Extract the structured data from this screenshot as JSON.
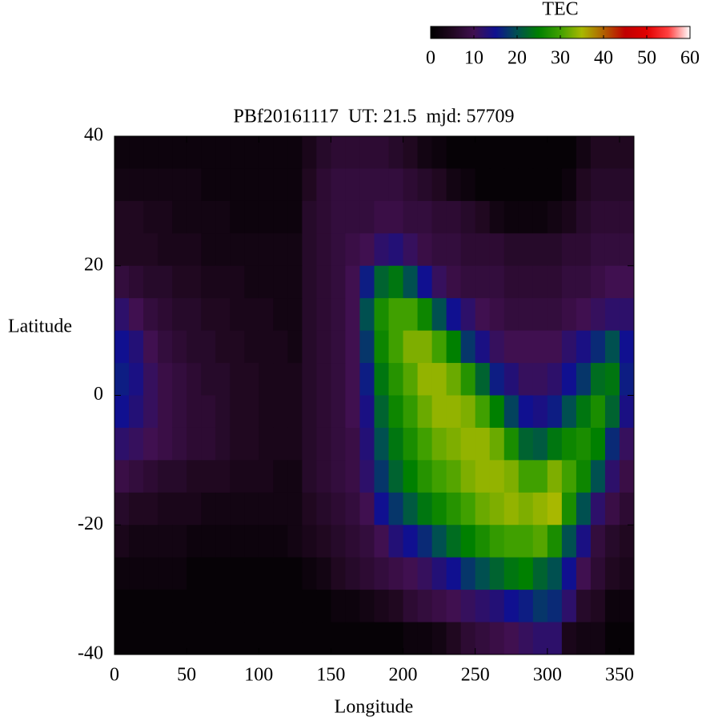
{
  "chart_data": {
    "type": "heatmap",
    "title": "PBf20161117  UT: 21.5  mjd: 57709",
    "x_label": "Longitude",
    "y_label": "Latitude",
    "xlim": [
      0,
      360
    ],
    "xticks": [
      0,
      50,
      100,
      150,
      200,
      250,
      300,
      350
    ],
    "ylim": [
      -40,
      40
    ],
    "yticks": [
      -40,
      -20,
      0,
      20,
      40
    ],
    "x": [
      5,
      15,
      25,
      35,
      45,
      55,
      65,
      75,
      85,
      95,
      105,
      115,
      125,
      135,
      145,
      155,
      165,
      175,
      185,
      195,
      205,
      215,
      225,
      235,
      245,
      255,
      265,
      275,
      285,
      295,
      305,
      315,
      325,
      335,
      345,
      355
    ],
    "y": [
      37.5,
      32.5,
      27.5,
      22.5,
      17.5,
      12.5,
      7.5,
      2.5,
      -2.5,
      -7.5,
      -12.5,
      -17.5,
      -22.5,
      -27.5,
      -32.5,
      -37.5
    ],
    "z": [
      [
        2,
        2,
        2,
        2,
        2,
        2,
        2,
        2,
        2,
        2,
        2,
        2,
        2,
        4,
        6,
        7,
        7,
        7,
        7,
        6,
        5,
        3,
        2,
        1,
        1,
        1,
        1,
        1,
        1,
        1,
        1,
        1,
        3,
        5,
        5,
        5
      ],
      [
        3,
        3,
        3,
        3,
        3,
        3,
        2,
        2,
        2,
        2,
        2,
        2,
        2,
        5,
        7,
        8,
        8,
        8,
        8,
        8,
        7,
        6,
        5,
        3,
        2,
        1,
        1,
        1,
        1,
        1,
        1,
        2,
        5,
        6,
        6,
        6
      ],
      [
        5,
        5,
        4,
        4,
        3,
        3,
        3,
        3,
        2,
        2,
        2,
        2,
        2,
        6,
        7,
        8,
        8,
        8,
        9,
        9,
        8,
        8,
        7,
        7,
        6,
        5,
        3,
        2,
        2,
        2,
        3,
        4,
        6,
        7,
        7,
        7
      ],
      [
        5,
        5,
        5,
        4,
        4,
        4,
        3,
        3,
        3,
        3,
        3,
        3,
        3,
        6,
        7,
        8,
        9,
        10,
        12,
        13,
        11,
        9,
        8,
        8,
        7,
        7,
        7,
        6,
        6,
        6,
        6,
        7,
        7,
        8,
        8,
        8
      ],
      [
        8,
        7,
        6,
        6,
        5,
        5,
        4,
        4,
        4,
        3,
        3,
        3,
        3,
        6,
        7,
        8,
        10,
        16,
        22,
        24,
        20,
        15,
        11,
        9,
        8,
        8,
        8,
        7,
        7,
        7,
        7,
        8,
        8,
        9,
        10,
        10
      ],
      [
        12,
        10,
        8,
        7,
        6,
        6,
        5,
        5,
        4,
        4,
        4,
        3,
        3,
        6,
        7,
        8,
        10,
        20,
        27,
        30,
        30,
        26,
        20,
        15,
        12,
        10,
        9,
        8,
        8,
        8,
        8,
        9,
        10,
        11,
        12,
        12
      ],
      [
        15,
        13,
        10,
        8,
        7,
        6,
        6,
        5,
        5,
        4,
        4,
        4,
        3,
        6,
        7,
        8,
        10,
        18,
        26,
        30,
        33,
        33,
        30,
        25,
        18,
        14,
        11,
        10,
        10,
        10,
        10,
        12,
        14,
        17,
        20,
        15
      ],
      [
        16,
        14,
        11,
        9,
        8,
        7,
        6,
        6,
        5,
        5,
        4,
        4,
        4,
        6,
        7,
        8,
        10,
        16,
        24,
        28,
        31,
        34,
        34,
        32,
        28,
        22,
        16,
        13,
        11,
        11,
        12,
        15,
        18,
        23,
        24,
        16
      ],
      [
        15,
        13,
        11,
        9,
        8,
        7,
        7,
        6,
        5,
        5,
        4,
        4,
        4,
        6,
        7,
        8,
        10,
        14,
        22,
        26,
        29,
        32,
        34,
        34,
        33,
        30,
        25,
        19,
        15,
        14,
        16,
        20,
        24,
        27,
        22,
        14
      ],
      [
        12,
        11,
        10,
        9,
        8,
        7,
        7,
        6,
        5,
        5,
        4,
        4,
        4,
        6,
        7,
        8,
        9,
        13,
        20,
        24,
        27,
        30,
        32,
        33,
        34,
        34,
        32,
        27,
        22,
        21,
        24,
        26,
        27,
        25,
        17,
        11
      ],
      [
        9,
        8,
        7,
        6,
        6,
        5,
        5,
        5,
        4,
        4,
        4,
        3,
        3,
        6,
        7,
        8,
        9,
        12,
        18,
        22,
        25,
        28,
        30,
        31,
        33,
        34,
        34,
        33,
        30,
        30,
        33,
        30,
        26,
        20,
        12,
        9
      ],
      [
        6,
        5,
        5,
        4,
        4,
        4,
        3,
        3,
        3,
        3,
        3,
        3,
        3,
        5,
        6,
        7,
        8,
        10,
        15,
        18,
        21,
        24,
        26,
        28,
        30,
        32,
        33,
        34,
        33,
        34,
        35,
        27,
        20,
        12,
        9,
        7
      ],
      [
        4,
        3,
        3,
        3,
        3,
        2,
        2,
        2,
        2,
        2,
        2,
        2,
        3,
        4,
        5,
        6,
        7,
        8,
        10,
        13,
        15,
        17,
        20,
        23,
        25,
        27,
        29,
        30,
        30,
        31,
        27,
        20,
        14,
        8,
        6,
        5
      ],
      [
        2,
        2,
        2,
        2,
        2,
        1,
        1,
        1,
        1,
        1,
        1,
        1,
        1,
        2,
        3,
        5,
        6,
        7,
        8,
        9,
        10,
        11,
        13,
        15,
        18,
        20,
        22,
        24,
        25,
        22,
        20,
        15,
        10,
        7,
        5,
        4
      ],
      [
        1,
        1,
        1,
        1,
        1,
        1,
        1,
        1,
        1,
        1,
        1,
        1,
        1,
        1,
        1,
        2,
        2,
        3,
        4,
        5,
        7,
        8,
        9,
        10,
        11,
        12,
        13,
        15,
        16,
        18,
        17,
        12,
        6,
        5,
        2,
        2
      ],
      [
        1,
        1,
        1,
        1,
        1,
        1,
        1,
        1,
        1,
        1,
        1,
        1,
        1,
        1,
        1,
        1,
        1,
        1,
        1,
        1,
        2,
        2,
        3,
        5,
        7,
        8,
        9,
        10,
        11,
        12,
        12,
        4,
        3,
        3,
        1,
        1
      ]
    ],
    "colorbar": {
      "title": "TEC",
      "lim": [
        0,
        60
      ],
      "ticks": [
        0,
        10,
        20,
        30,
        40,
        50,
        60
      ],
      "colors": [
        "#000000",
        "#200820",
        "#401050",
        "#101090",
        "#005050",
        "#008000",
        "#40a000",
        "#a8b800",
        "#b06000",
        "#c00000",
        "#e00000",
        "#ff4040",
        "#ffffff"
      ]
    }
  }
}
